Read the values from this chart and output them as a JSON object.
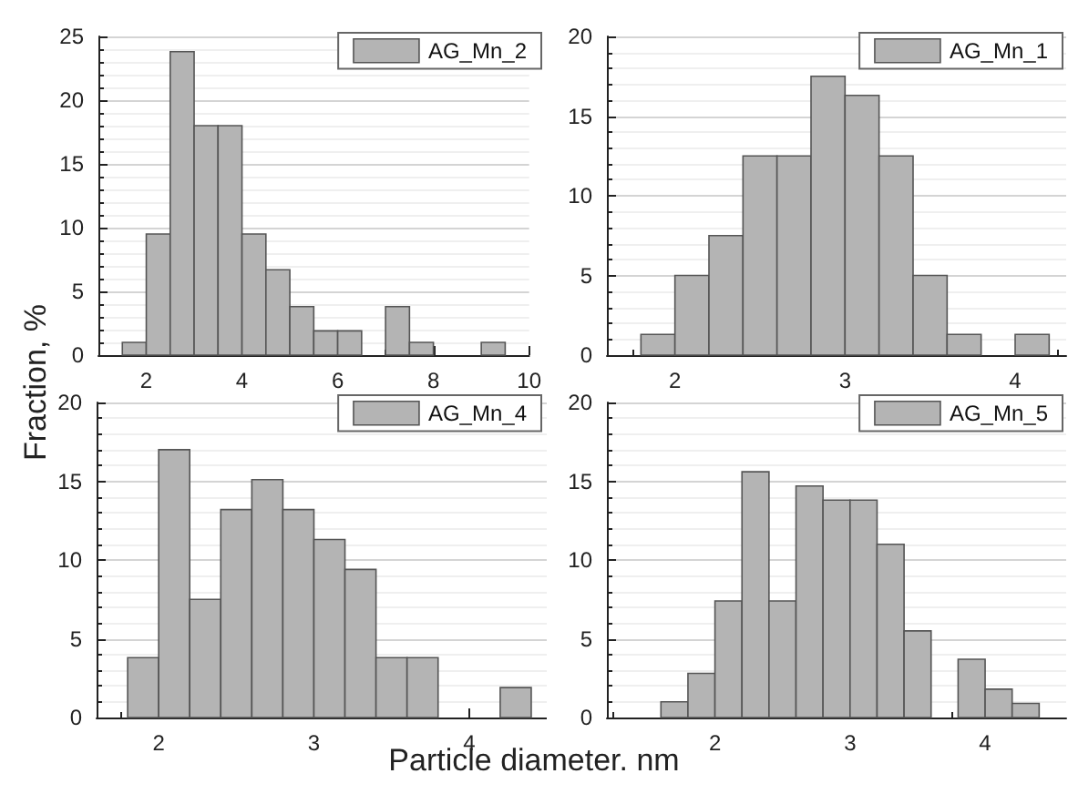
{
  "chart_data": [
    {
      "type": "histogram",
      "ylabel": "Fraction, %",
      "legend": "top right",
      "grid": "y",
      "xlim": [
        1,
        10
      ],
      "xticks": [
        2,
        4,
        6,
        8,
        10
      ],
      "ylim": [
        0,
        25
      ],
      "yticks": [
        0,
        5,
        10,
        15,
        20,
        25
      ],
      "bins": [
        1.5,
        2,
        2.5,
        3,
        3.5,
        4,
        4.5,
        5,
        5.5,
        6,
        6.5,
        7,
        7.5,
        8,
        8.5,
        9,
        9.5
      ],
      "series": [
        {
          "name": "AG_Mn_2",
          "color": "#b4b4b4",
          "values": [
            1,
            9.5,
            23.8,
            18,
            18,
            9.5,
            6.7,
            3.8,
            1.9,
            1.9,
            0,
            3.8,
            1,
            0,
            0,
            1
          ]
        }
      ]
    },
    {
      "type": "histogram",
      "legend": "top right",
      "grid": "y",
      "xlim": [
        1.6,
        4.3
      ],
      "xticks": [
        2,
        3,
        4
      ],
      "ylim": [
        0,
        20
      ],
      "yticks": [
        0,
        5,
        10,
        15,
        20
      ],
      "bins": [
        1.8,
        2,
        2.2,
        2.4,
        2.6,
        2.8,
        3,
        3.2,
        3.4,
        3.6,
        3.8,
        4,
        4.2
      ],
      "series": [
        {
          "name": "AG_Mn_1",
          "color": "#b4b4b4",
          "values": [
            1.3,
            5,
            7.5,
            12.5,
            12.5,
            17.5,
            16.3,
            12.5,
            5,
            1.3,
            0,
            1.3
          ]
        }
      ]
    },
    {
      "type": "histogram",
      "legend": "top right",
      "grid": "y",
      "xlim": [
        1.6,
        4.5
      ],
      "xticks": [
        2,
        3,
        4
      ],
      "ylim": [
        0,
        20
      ],
      "yticks": [
        0,
        5,
        10,
        15,
        20
      ],
      "bins": [
        1.8,
        2,
        2.2,
        2.4,
        2.6,
        2.8,
        3,
        3.2,
        3.4,
        3.6,
        3.8,
        4,
        4.2,
        4.4
      ],
      "series": [
        {
          "name": "AG_Mn_4",
          "color": "#b4b4b4",
          "values": [
            3.8,
            17,
            7.5,
            13.2,
            15.1,
            13.2,
            11.3,
            9.4,
            3.8,
            3.8,
            0,
            0,
            1.9
          ]
        }
      ]
    },
    {
      "type": "histogram",
      "xlabel": "Particle diameter. nm",
      "legend": "top right",
      "grid": "y",
      "xlim": [
        1.2,
        4.6
      ],
      "xticks": [
        2,
        3,
        4
      ],
      "ylim": [
        0,
        20
      ],
      "yticks": [
        0,
        5,
        10,
        15,
        20
      ],
      "bins": [
        1.6,
        1.8,
        2,
        2.2,
        2.4,
        2.6,
        2.8,
        3,
        3.2,
        3.4,
        3.6,
        3.8,
        4,
        4.2,
        4.4
      ],
      "series": [
        {
          "name": "AG_Mn_5",
          "color": "#b4b4b4",
          "values": [
            1,
            2.8,
            7.4,
            15.6,
            7.4,
            14.7,
            13.8,
            13.8,
            11,
            5.5,
            0,
            3.7,
            1.8,
            0.9
          ]
        }
      ]
    }
  ]
}
